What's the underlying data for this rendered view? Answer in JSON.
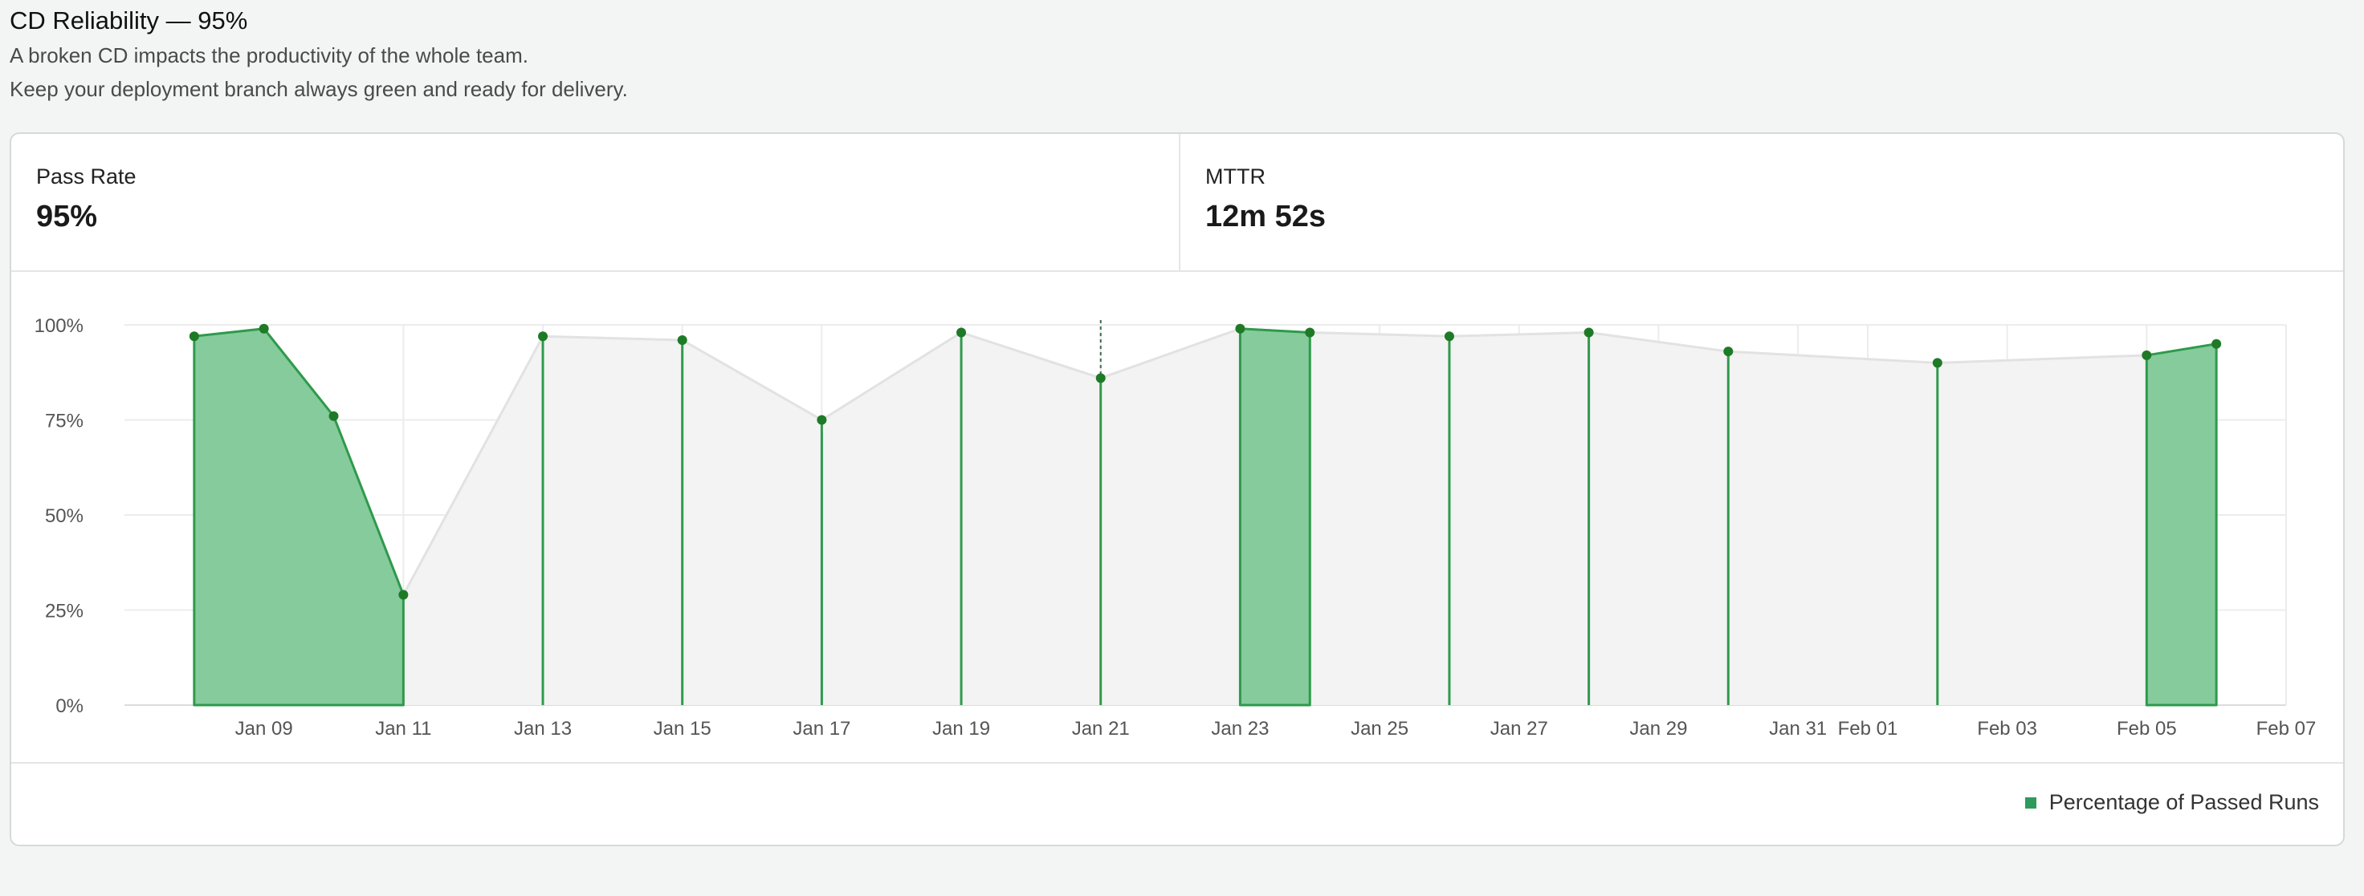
{
  "header": {
    "title": "CD Reliability — 95%",
    "description_line1": "A broken CD impacts the productivity of the whole team.",
    "description_line2": "Keep your deployment branch always green and ready for delivery."
  },
  "metrics": [
    {
      "label": "Pass Rate",
      "value": "95%"
    },
    {
      "label": "MTTR",
      "value": "12m 52s"
    }
  ],
  "legend": {
    "label": "Percentage of Passed Runs"
  },
  "colors": {
    "pass_fill": "#86cb9c",
    "pass_line": "#2e9a4c",
    "point": "#1e7a26",
    "overall_fill": "#f3f3f3",
    "overall_line": "#e2e2e2",
    "grid": "#ececec",
    "tick_text": "#555555"
  },
  "chart_data": {
    "type": "area",
    "title": "",
    "xlabel": "",
    "ylabel": "",
    "y_ticks": [
      "0%",
      "25%",
      "50%",
      "75%",
      "100%"
    ],
    "ylim": [
      0,
      100
    ],
    "x_tick_labels": [
      "Jan 09",
      "Jan 11",
      "Jan 13",
      "Jan 15",
      "Jan 17",
      "Jan 19",
      "Jan 21",
      "Jan 23",
      "Jan 25",
      "Jan 27",
      "Jan 29",
      "Jan 31",
      "Feb 01",
      "Feb 03",
      "Feb 05",
      "Feb 07"
    ],
    "x_range": [
      "Jan 07",
      "Feb 07"
    ],
    "grid": true,
    "legend_position": "bottom-right",
    "series": [
      {
        "name": "Percentage of Passed Runs",
        "points": [
          {
            "date": "Jan 08",
            "value": 97
          },
          {
            "date": "Jan 09",
            "value": 99
          },
          {
            "date": "Jan 10",
            "value": 76
          },
          {
            "date": "Jan 11",
            "value": 29
          },
          {
            "date": "Jan 13",
            "value": 97
          },
          {
            "date": "Jan 15",
            "value": 96
          },
          {
            "date": "Jan 17",
            "value": 75
          },
          {
            "date": "Jan 19",
            "value": 98
          },
          {
            "date": "Jan 21",
            "value": 86
          },
          {
            "date": "Jan 23",
            "value": 99
          },
          {
            "date": "Jan 24",
            "value": 98
          },
          {
            "date": "Jan 26",
            "value": 97
          },
          {
            "date": "Jan 28",
            "value": 98
          },
          {
            "date": "Jan 30",
            "value": 93
          },
          {
            "date": "Feb 02",
            "value": 90
          },
          {
            "date": "Feb 05",
            "value": 92
          },
          {
            "date": "Feb 06",
            "value": 95
          }
        ],
        "filled_runs": [
          [
            "Jan 08",
            "Jan 09",
            "Jan 10",
            "Jan 11"
          ],
          [
            "Jan 23",
            "Jan 24"
          ],
          [
            "Feb 05",
            "Feb 06"
          ]
        ]
      }
    ]
  }
}
